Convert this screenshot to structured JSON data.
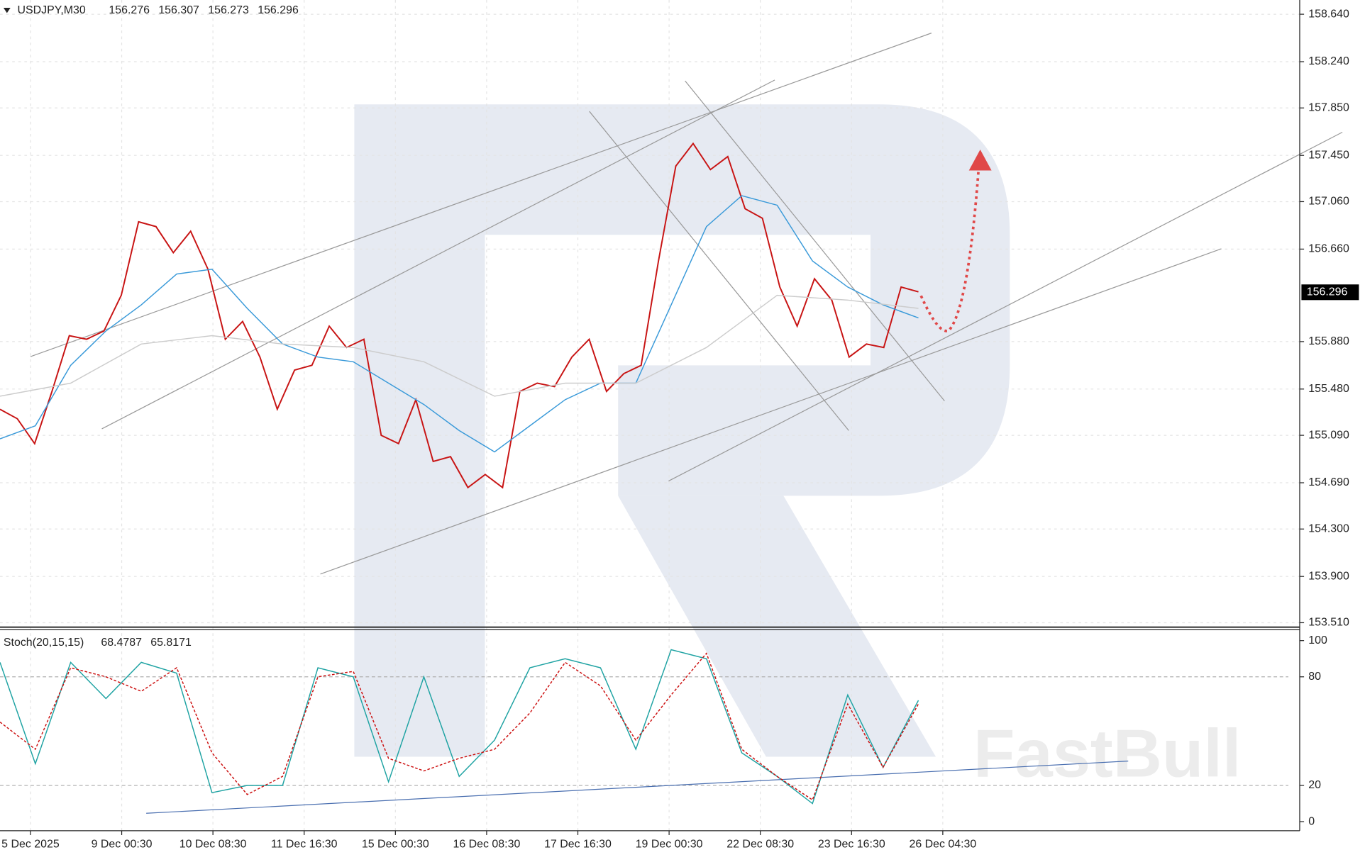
{
  "chart_data": [
    {
      "type": "line",
      "symbol": "USDJPY,M30",
      "ohlc": [
        156.276,
        156.307,
        156.273,
        156.296
      ],
      "current_price": 156.296,
      "watermark": "FastBull",
      "xtick_labels": [
        "5 Dec 2025",
        "9 Dec 00:30",
        "10 Dec 08:30",
        "11 Dec 16:30",
        "15 Dec 00:30",
        "16 Dec 08:30",
        "17 Dec 16:30",
        "19 Dec 00:30",
        "22 Dec 08:30",
        "23 Dec 16:30",
        "26 Dec 04:30"
      ],
      "ylim": [
        153.48,
        158.76
      ],
      "yticks": [
        {
          "value": 158.64,
          "label": "158.640"
        },
        {
          "value": 158.24,
          "label": "158.240"
        },
        {
          "value": 157.85,
          "label": "157.850"
        },
        {
          "value": 157.45,
          "label": "157.450"
        },
        {
          "value": 157.06,
          "label": "157.060"
        },
        {
          "value": 156.66,
          "label": "156.660"
        },
        {
          "value": 155.88,
          "label": "155.880"
        },
        {
          "value": 155.48,
          "label": "155.480"
        },
        {
          "value": 155.09,
          "label": "155.090"
        },
        {
          "value": 154.69,
          "label": "154.690"
        },
        {
          "value": 154.3,
          "label": "154.300"
        },
        {
          "value": 153.9,
          "label": "153.900"
        },
        {
          "value": 153.51,
          "label": "153.510"
        }
      ],
      "grid": true,
      "series": [
        {
          "color": "#c81414",
          "values": [
            155.31,
            155.23,
            155.02,
            155.46,
            155.93,
            155.9,
            155.97,
            156.27,
            156.89,
            156.85,
            156.63,
            156.81,
            156.49,
            155.9,
            156.05,
            155.75,
            155.31,
            155.64,
            155.68,
            156.01,
            155.83,
            155.9,
            155.09,
            155.02,
            155.39,
            154.87,
            154.91,
            154.65,
            154.76,
            154.65,
            155.46,
            155.53,
            155.5,
            155.75,
            155.9,
            155.46,
            155.61,
            155.68,
            156.56,
            157.36,
            157.55,
            157.33,
            157.44,
            157.0,
            156.92,
            156.34,
            156.01,
            156.41,
            156.23,
            155.75,
            155.86,
            155.83,
            156.34,
            156.3
          ]
        },
        {
          "color": "#3a9ad9",
          "values": [
            155.06,
            155.17,
            155.68,
            155.97,
            156.19,
            156.45,
            156.49,
            156.16,
            155.86,
            155.75,
            155.71,
            155.53,
            155.35,
            155.13,
            154.95,
            155.17,
            155.39,
            155.53,
            155.53,
            156.19,
            156.85,
            157.11,
            157.03,
            156.56,
            156.34,
            156.19,
            156.08
          ]
        },
        {
          "color": "#cccccc",
          "values": [
            155.42,
            155.53,
            155.86,
            155.93,
            155.86,
            155.83,
            155.71,
            155.42,
            155.53,
            155.53,
            155.83,
            156.27,
            156.23,
            156.16
          ]
        }
      ]
    },
    {
      "type": "line",
      "indicator": "Stoch(20,15,15)",
      "readings": [
        68.4787,
        65.8171
      ],
      "ylim": [
        -5,
        106
      ],
      "yticks": [
        0,
        20,
        80,
        100
      ],
      "levels": [
        20,
        80
      ],
      "series": [
        {
          "color": "#1fa3a3",
          "dash": false,
          "values": [
            88,
            32,
            88,
            68,
            88,
            82,
            16,
            20,
            20,
            85,
            80,
            22,
            80,
            25,
            45,
            85,
            90,
            85,
            40,
            95,
            90,
            38,
            25,
            10,
            70,
            30,
            67
          ]
        },
        {
          "color": "#cc1010",
          "dash": true,
          "values": [
            55,
            40,
            85,
            80,
            72,
            85,
            38,
            15,
            25,
            80,
            83,
            35,
            28,
            35,
            40,
            60,
            88,
            75,
            45,
            70,
            93,
            40,
            25,
            12,
            65,
            30,
            65
          ]
        }
      ]
    }
  ]
}
